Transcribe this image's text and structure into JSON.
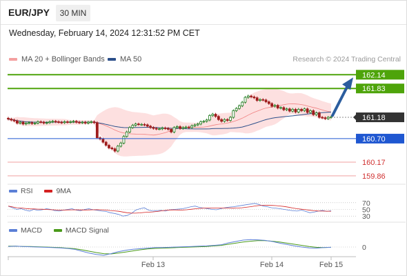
{
  "header": {
    "symbol": "EUR/JPY",
    "timeframe": "30 MIN"
  },
  "datetime": "Wednesday, February 14, 2024 12:31:52 PM CET",
  "legend": {
    "bb": "MA 20 + Bollinger Bands",
    "ma50": "MA 50"
  },
  "credit": "Research © 2024 Trading Central",
  "colors": {
    "up_candle": "#1b7a1b",
    "down_candle": "#9e1d1d",
    "target_green": "#4ea40a",
    "current_dark": "#333333",
    "pivot_blue": "#1f57d1",
    "support_red": "#d94040",
    "ma50": "#2c4f8a",
    "bb": "#f08080",
    "arrow": "#2b5d9e"
  },
  "chart_data": {
    "type": "candlestick",
    "x_labels": [
      "Feb 13",
      "Feb 14",
      "Feb 15"
    ],
    "ylim": [
      159.75,
      162.3
    ],
    "price": [
      161.14,
      161.12,
      161.1,
      161.05,
      161.07,
      161.03,
      161.05,
      161.06,
      161.04,
      161.05,
      161.08,
      161.07,
      161.05,
      161.06,
      161.08,
      161.09,
      161.08,
      161.07,
      161.06,
      161.08,
      161.07,
      161.08,
      161.09,
      161.07,
      161.06,
      161.07,
      161.05,
      161.07,
      161.08,
      161.06,
      160.72,
      160.69,
      160.62,
      160.55,
      160.49,
      160.47,
      160.42,
      160.53,
      160.6,
      160.75,
      160.85,
      160.95,
      161.0,
      161.03,
      161.02,
      161.02,
      161.01,
      160.98,
      160.95,
      160.93,
      160.92,
      160.92,
      160.94,
      160.93,
      160.91,
      160.85,
      160.95,
      160.97,
      160.93,
      160.95,
      160.96,
      160.95,
      160.99,
      161.01,
      161.03,
      161.08,
      161.09,
      161.12,
      161.22,
      161.25,
      161.2,
      161.13,
      161.09,
      161.13,
      161.11,
      161.18,
      161.33,
      161.38,
      161.44,
      161.52,
      161.63,
      161.66,
      161.64,
      161.62,
      161.56,
      161.58,
      161.57,
      161.53,
      161.49,
      161.43,
      161.45,
      161.39,
      161.4,
      161.35,
      161.37,
      161.32,
      161.36,
      161.3,
      161.36,
      161.33,
      161.37,
      161.29,
      161.33,
      161.24,
      161.28,
      161.18,
      161.17,
      161.15,
      161.18,
      161.19
    ],
    "targets": [
      {
        "value": "162.14",
        "kind": "target"
      },
      {
        "value": "161.83",
        "kind": "target"
      },
      {
        "value": "161.18",
        "kind": "current"
      },
      {
        "value": "160.70",
        "kind": "pivot"
      },
      {
        "value": "160.17",
        "kind": "support"
      },
      {
        "value": "159.86",
        "kind": "support"
      }
    ]
  },
  "rsi": {
    "legend_rsi": "RSI",
    "legend_ma": "9MA",
    "levels": [
      "70",
      "50",
      "30"
    ],
    "values": [
      60,
      55,
      50,
      52,
      48,
      45,
      50,
      47,
      49,
      52,
      50,
      46,
      45,
      48,
      50,
      52,
      48,
      46,
      50,
      52,
      49,
      47,
      45,
      44,
      40,
      38,
      35,
      30,
      32,
      38,
      48,
      52,
      55,
      48,
      45,
      46,
      47,
      45,
      49,
      50,
      51,
      52,
      55,
      58,
      60,
      56,
      54,
      52,
      50,
      49,
      52,
      55,
      57,
      58,
      60,
      62,
      64,
      66,
      68,
      65,
      60,
      58,
      55,
      54,
      52,
      50,
      48,
      46,
      45,
      48,
      44,
      40,
      42,
      45,
      47,
      44,
      46
    ]
  },
  "macd": {
    "legend_macd": "MACD",
    "legend_signal": "MACD Signal",
    "zero_label": "0",
    "macd": [
      0.02,
      0.03,
      0.02,
      0.01,
      0.0,
      -0.01,
      -0.02,
      -0.03,
      -0.05,
      -0.08,
      -0.15,
      -0.22,
      -0.27,
      -0.3,
      -0.24,
      -0.17,
      -0.12,
      -0.08,
      -0.06,
      -0.04,
      -0.02,
      -0.02,
      -0.01,
      0.0,
      0.01,
      0.02,
      0.03,
      0.04,
      0.06,
      0.08,
      0.15,
      0.2,
      0.25,
      0.27,
      0.26,
      0.24,
      0.2,
      0.14,
      0.09,
      0.04,
      0.0,
      -0.03,
      -0.04,
      -0.02,
      -0.01
    ],
    "signal": [
      0.03,
      0.03,
      0.02,
      0.02,
      0.01,
      0.0,
      -0.01,
      -0.02,
      -0.04,
      -0.06,
      -0.1,
      -0.15,
      -0.2,
      -0.24,
      -0.25,
      -0.22,
      -0.18,
      -0.14,
      -0.1,
      -0.07,
      -0.05,
      -0.04,
      -0.03,
      -0.02,
      -0.01,
      0.0,
      0.01,
      0.02,
      0.04,
      0.06,
      0.1,
      0.14,
      0.18,
      0.21,
      0.23,
      0.23,
      0.21,
      0.18,
      0.14,
      0.1,
      0.06,
      0.02,
      -0.01,
      -0.02,
      -0.01
    ]
  }
}
